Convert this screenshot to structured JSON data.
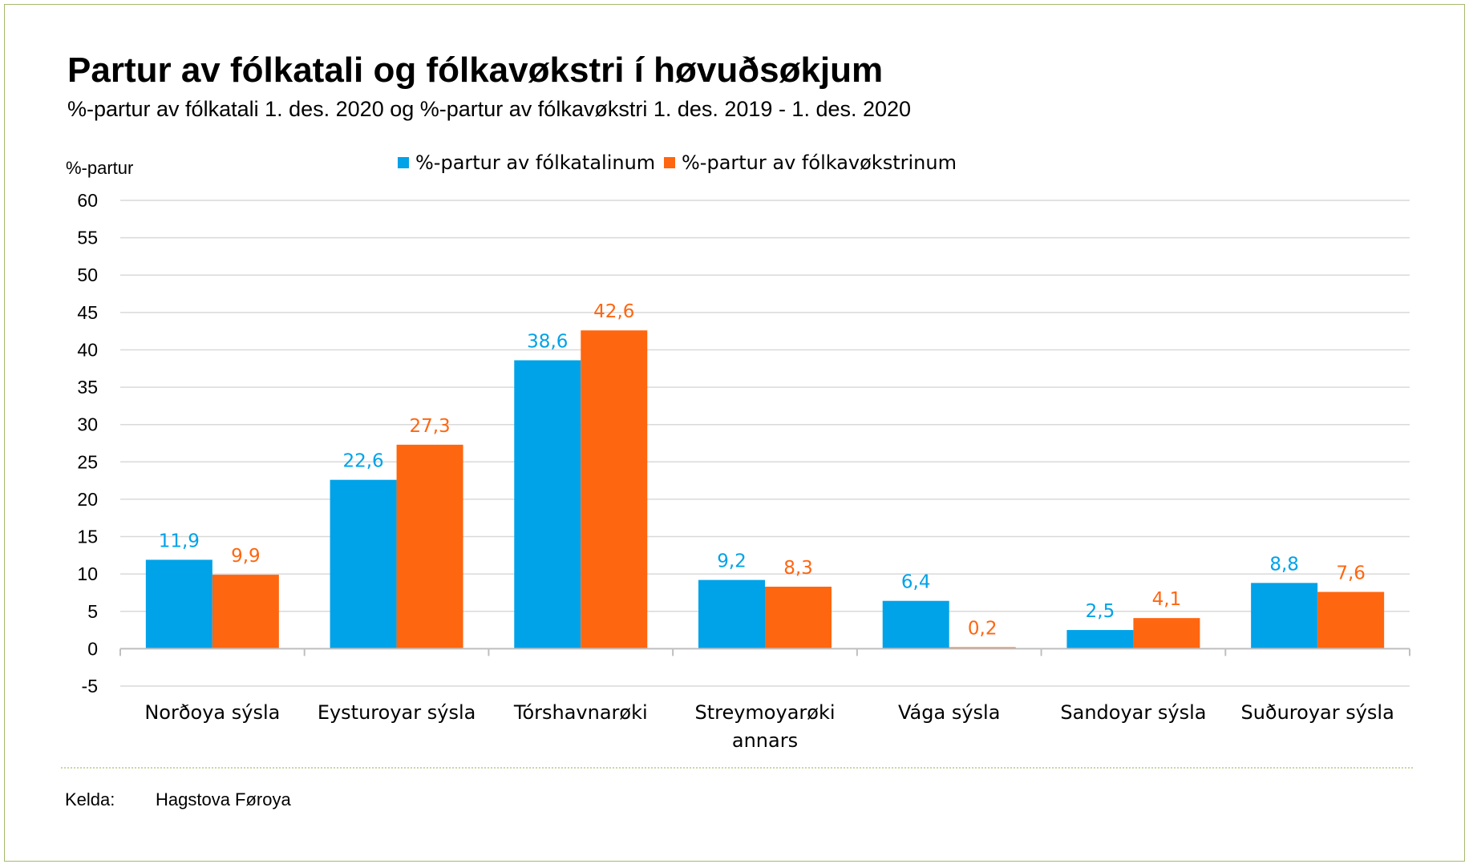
{
  "title": "Partur av fólkatali og fólkavøkstri í høvuðsøkjum",
  "subtitle": "%-partur av fólkatali 1. des. 2020 og %-partur av fólkavøkstri 1. des. 2019 - 1. des. 2020",
  "source": {
    "label": "Kelda:",
    "value": "Hagstova Føroya"
  },
  "colors": {
    "series1": "#00a2e8",
    "series2": "#ff6610",
    "gridline": "#d9d9d9",
    "axis": "#bfbfbf",
    "frame": "#a6b96e",
    "separator": "#b8c98a"
  },
  "chart_data": {
    "type": "bar",
    "ylabel": "%-partur",
    "xlabel": "",
    "ylim": [
      -5,
      60
    ],
    "y_ticks": [
      "-5",
      "0",
      "5",
      "10",
      "15",
      "20",
      "25",
      "30",
      "35",
      "40",
      "45",
      "50",
      "55",
      "60"
    ],
    "grid": true,
    "legend_position": "top-center",
    "categories": [
      [
        "Norðoya sýsla"
      ],
      [
        "Eysturoyar sýsla"
      ],
      [
        "Tórshavnarøki"
      ],
      [
        "Streymoyarøki",
        "annars"
      ],
      [
        "Vága sýsla"
      ],
      [
        "Sandoyar sýsla"
      ],
      [
        "Suðuroyar sýsla"
      ]
    ],
    "series": [
      {
        "name": "%-partur av fólkatalinum",
        "values": [
          11.9,
          22.6,
          38.6,
          9.2,
          6.4,
          2.5,
          8.8
        ],
        "labels": [
          "11,9",
          "22,6",
          "38,6",
          "9,2",
          "6,4",
          "2,5",
          "8,8"
        ]
      },
      {
        "name": "%-partur av fólkavøkstrinum",
        "values": [
          9.9,
          27.3,
          42.6,
          8.3,
          0.2,
          4.1,
          7.6
        ],
        "labels": [
          "9,9",
          "27,3",
          "42,6",
          "8,3",
          "0,2",
          "4,1",
          "7,6"
        ]
      }
    ]
  }
}
